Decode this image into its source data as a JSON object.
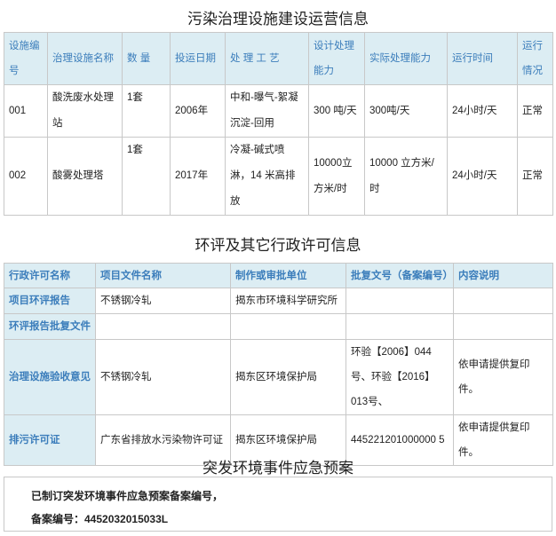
{
  "section1": {
    "title": "污染治理设施建设运营信息",
    "headers": [
      "设施编号",
      "治理设施名称",
      "数 量",
      "投运日期",
      "处 理 工 艺",
      "设计处理能力",
      "实际处理能力",
      "运行时间",
      "运行情况"
    ],
    "rows": [
      [
        "001",
        "酸洗废水处理站",
        "1套",
        "2006年",
        "中和-曝气-絮凝沉淀-回用",
        "300 吨/天",
        "300吨/天",
        "24小时/天",
        "正常"
      ],
      [
        "002",
        "酸雾处理塔",
        "1套",
        "2017年",
        "冷凝-碱式喷淋，14 米高排放",
        "10000立方米/时",
        "10000 立方米/时",
        "24小时/天",
        "正常"
      ]
    ]
  },
  "section2": {
    "title": "环评及其它行政许可信息",
    "headers": [
      "行政许可名称",
      "项目文件名称",
      "制作或审批单位",
      "批复文号（备案编号）",
      "内容说明"
    ],
    "rows": [
      [
        "项目环评报告",
        "不锈钢冷轧",
        "揭东市环境科学研究所",
        "",
        ""
      ],
      [
        "环评报告批复文件",
        "",
        "",
        "",
        ""
      ],
      [
        "治理设施验收意见",
        "不锈钢冷轧",
        "揭东区环境保护局",
        "环验【2006】044号、环验【2016】013号、",
        "依申请提供复印件。"
      ],
      [
        "排污许可证",
        "广东省排放水污染物许可证",
        "揭东区环境保护局",
        "445221201000000 5",
        "依申请提供复印件。"
      ]
    ]
  },
  "section3": {
    "title": "突发环境事件应急预案",
    "line1": "已制订突发环境事件应急预案备案编号，",
    "line2": "备案编号：4452032015033L"
  }
}
